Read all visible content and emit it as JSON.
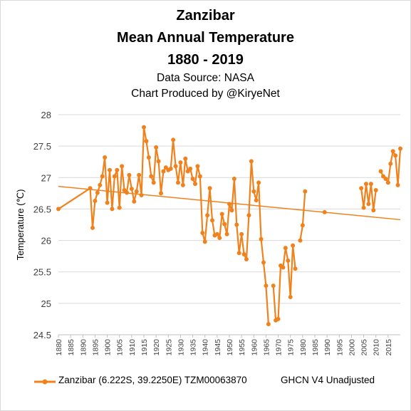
{
  "title_lines": [
    "Zanzibar",
    "Mean Annual Temperature",
    "1880 - 2019"
  ],
  "subtitle_lines": [
    "Data Source: NASA",
    "Chart Produced by @KiryeNet"
  ],
  "legend": {
    "series_label": "Zanzibar (6.222S, 39.2250E) TZM00063870",
    "note": "GHCN V4 Unadjusted"
  },
  "colors": {
    "series": "#F0821E",
    "trend": "#F0821E",
    "gridline": "#d9d9d9",
    "axis": "#bfbfbf"
  },
  "chart_data": {
    "type": "line",
    "title": "Zanzibar Mean Annual Temperature 1880 - 2019",
    "ylabel": "Temperature (℃)",
    "xlabel": "",
    "ylim": [
      24.5,
      28
    ],
    "yticks": [
      "24.5",
      "25",
      "25.5",
      "26",
      "26.5",
      "27",
      "27.5",
      "28"
    ],
    "xlim": [
      1880,
      2019
    ],
    "xticks": [
      "1880",
      "1885",
      "1890",
      "1895",
      "1900",
      "1905",
      "1910",
      "1915",
      "1920",
      "1925",
      "1930",
      "1935",
      "1940",
      "1945",
      "1950",
      "1955",
      "1960",
      "1965",
      "1970",
      "1975",
      "1980",
      "1985",
      "1990",
      "1995",
      "2000",
      "2005",
      "2010",
      "2015"
    ],
    "grid": "horizontal",
    "legend_position": "bottom",
    "series": [
      {
        "name": "Zanzibar (6.222S, 39.2250E) TZM00063870",
        "points": [
          [
            1880,
            26.5
          ],
          [
            1893,
            26.83
          ],
          [
            1894,
            26.2
          ],
          [
            1895,
            26.63
          ],
          [
            1896,
            26.76
          ],
          [
            1897,
            26.88
          ],
          [
            1898,
            27.02
          ],
          [
            1899,
            27.32
          ],
          [
            1900,
            26.6
          ],
          [
            1901,
            27.12
          ],
          [
            1902,
            26.5
          ],
          [
            1903,
            27.02
          ],
          [
            1904,
            27.12
          ],
          [
            1905,
            26.52
          ],
          [
            1906,
            27.18
          ],
          [
            1907,
            26.8
          ],
          [
            1908,
            26.76
          ],
          [
            1909,
            27.04
          ],
          [
            1910,
            26.82
          ],
          [
            1911,
            26.62
          ],
          [
            1912,
            26.78
          ],
          [
            1913,
            27.04
          ],
          [
            1914,
            26.72
          ],
          [
            1915,
            27.8
          ],
          [
            1916,
            27.58
          ],
          [
            1917,
            27.32
          ],
          [
            1918,
            27.02
          ],
          [
            1919,
            26.92
          ],
          [
            1920,
            27.48
          ],
          [
            1921,
            27.26
          ],
          [
            1922,
            26.75
          ],
          [
            1923,
            27.1
          ],
          [
            1924,
            27.16
          ],
          [
            1925,
            27.12
          ],
          [
            1926,
            27.14
          ],
          [
            1927,
            27.6
          ],
          [
            1928,
            27.18
          ],
          [
            1929,
            26.92
          ],
          [
            1930,
            27.24
          ],
          [
            1931,
            26.88
          ],
          [
            1932,
            27.3
          ],
          [
            1933,
            27.1
          ],
          [
            1934,
            27.14
          ],
          [
            1935,
            26.98
          ],
          [
            1936,
            26.9
          ],
          [
            1937,
            27.18
          ],
          [
            1938,
            27.02
          ],
          [
            1939,
            26.12
          ],
          [
            1940,
            25.98
          ],
          [
            1941,
            26.4
          ],
          [
            1942,
            26.83
          ],
          [
            1943,
            26.32
          ],
          [
            1944,
            26.08
          ],
          [
            1945,
            26.1
          ],
          [
            1946,
            26.04
          ],
          [
            1947,
            26.42
          ],
          [
            1948,
            26.26
          ],
          [
            1949,
            26.1
          ],
          [
            1950,
            26.58
          ],
          [
            1951,
            26.48
          ],
          [
            1952,
            26.98
          ],
          [
            1953,
            26.25
          ],
          [
            1954,
            25.8
          ],
          [
            1955,
            26.1
          ],
          [
            1956,
            25.78
          ],
          [
            1957,
            25.7
          ],
          [
            1958,
            26.4
          ],
          [
            1959,
            27.26
          ],
          [
            1960,
            26.78
          ],
          [
            1961,
            26.64
          ],
          [
            1962,
            26.92
          ],
          [
            1963,
            26.02
          ],
          [
            1964,
            25.65
          ],
          [
            1965,
            25.28
          ],
          [
            1966,
            24.67
          ],
          null,
          [
            1968,
            25.28
          ],
          [
            1969,
            24.73
          ],
          [
            1970,
            24.75
          ],
          [
            1971,
            25.6
          ],
          [
            1972,
            25.57
          ],
          [
            1973,
            25.88
          ],
          [
            1974,
            25.68
          ],
          [
            1975,
            25.1
          ],
          [
            1976,
            25.92
          ],
          [
            1977,
            25.55
          ],
          null,
          [
            1979,
            26.0
          ],
          [
            1980,
            26.24
          ],
          [
            1981,
            26.78
          ],
          null,
          [
            1989,
            26.45
          ],
          null,
          [
            2004,
            26.83
          ],
          [
            2005,
            26.52
          ],
          [
            2006,
            26.9
          ],
          [
            2007,
            26.58
          ],
          [
            2008,
            26.9
          ],
          [
            2009,
            26.48
          ],
          [
            2010,
            26.8
          ],
          null,
          [
            2012,
            27.1
          ],
          [
            2013,
            27.02
          ],
          [
            2014,
            26.98
          ],
          [
            2015,
            26.92
          ],
          [
            2016,
            27.22
          ],
          [
            2017,
            27.42
          ],
          [
            2018,
            27.35
          ],
          [
            2019,
            26.88
          ],
          [
            2020,
            27.46
          ]
        ]
      }
    ],
    "trendline": {
      "start": [
        1880,
        26.86
      ],
      "end": [
        2020,
        26.33
      ]
    }
  }
}
